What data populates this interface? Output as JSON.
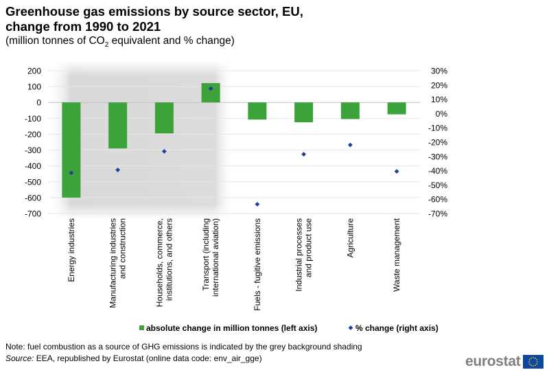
{
  "title_line1": "Greenhouse gas emissions by source sector, EU,",
  "title_line2": "change from 1990 to 2021",
  "subtitle_pre": "(million tonnes of CO",
  "subtitle_sub": "2",
  "subtitle_post": " equivalent and % change)",
  "note": "Note: fuel combustion as a source of GHG emissions is indicated by the grey background shading",
  "source_label": "Source:",
  "source_text": " EEA, republished by Eurostat (online data code: env_air_gge)",
  "logo_text": "eurostat",
  "colors": {
    "bar": "#3ca33a",
    "marker": "#243f99",
    "shade": "#d9d9d9",
    "grid": "#e6e6e6",
    "flag_blue": "#0e47a1",
    "flag_star": "#ffd500"
  },
  "chart_data": {
    "type": "bar",
    "categories": [
      "Energy industries",
      "Manufacturing industries and construction",
      "Households, commerce, institutions, and others",
      "Transport (including international aviation)",
      "Fuels - fugitive emissions",
      "Industrial processes and product use",
      "Agriculture",
      "Waste management"
    ],
    "category_labels": [
      [
        "Energy industries"
      ],
      [
        "Manufacturing industries",
        "and construction"
      ],
      [
        "Households, commerce,",
        "institutions, and others"
      ],
      [
        "Transport (including",
        "international aviation)"
      ],
      [
        "Fuels - fugitive emissions"
      ],
      [
        "Industrial processes",
        "and product use"
      ],
      [
        "Agriculture"
      ],
      [
        "Waste management"
      ]
    ],
    "shaded_categories": [
      0,
      1,
      2,
      3
    ],
    "series": [
      {
        "name": "absolute change in million tonnes (left axis)",
        "kind": "bar",
        "axis": "left",
        "values": [
          -600,
          -290,
          -195,
          122,
          -108,
          -125,
          -105,
          -75
        ]
      },
      {
        "name": "% change (right axis)",
        "kind": "marker",
        "axis": "right",
        "values": [
          -41.5,
          -39.5,
          -26.5,
          17.5,
          -63.5,
          -28.5,
          -22,
          -40.5
        ]
      }
    ],
    "left_axis": {
      "min": -700,
      "max": 200,
      "step": 100,
      "ticks": [
        "200",
        "100",
        "0",
        "-100",
        "-200",
        "-300",
        "-400",
        "-500",
        "-600",
        "-700"
      ]
    },
    "right_axis": {
      "min": -70,
      "max": 30,
      "step": 10,
      "ticks": [
        "30%",
        "20%",
        "10%",
        "0%",
        "-10%",
        "-20%",
        "-30%",
        "-40%",
        "-50%",
        "-60%",
        "-70%"
      ]
    },
    "legend_position": "bottom"
  }
}
